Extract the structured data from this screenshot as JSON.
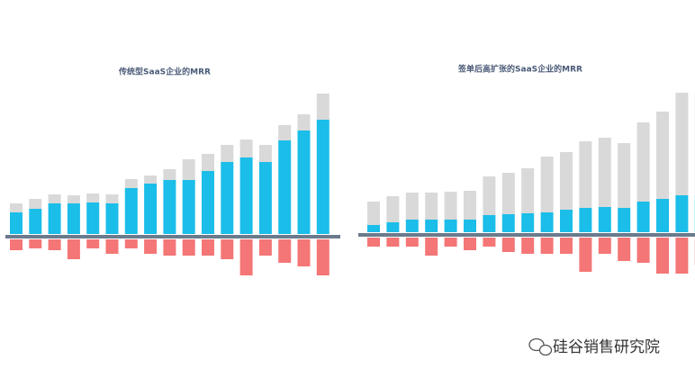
{
  "chart_data": [
    {
      "type": "stacked-diverging-bar",
      "title": "传统型SaaS企业的MRR",
      "series": [
        {
          "color": "#1bbde9",
          "values": [
            24,
            28,
            34,
            34,
            35,
            34,
            51,
            56,
            60,
            60,
            70,
            80,
            85,
            80,
            104,
            115,
            127
          ]
        },
        {
          "color": "#d9d9d9",
          "values": [
            12,
            13,
            12,
            11,
            12,
            12,
            12,
            11,
            14,
            25,
            21,
            21,
            22,
            21,
            19,
            20,
            31
          ]
        },
        {
          "color": "#f47676",
          "values": [
            -12,
            -10,
            -12,
            -22,
            -10,
            -16,
            -10,
            -16,
            -18,
            -18,
            -18,
            -22,
            -40,
            -18,
            -26,
            -30,
            -40
          ]
        }
      ]
    },
    {
      "type": "stacked-diverging-bar",
      "title": "签单后高扩张的SaaS企业的MRR",
      "series": [
        {
          "color": "#1bbde9",
          "values": [
            8,
            11,
            14,
            14,
            14,
            14,
            19,
            20,
            21,
            22,
            25,
            27,
            28,
            27,
            34,
            37,
            41,
            41
          ]
        },
        {
          "color": "#d9d9d9",
          "values": [
            28,
            31,
            32,
            32,
            33,
            34,
            45,
            48,
            52,
            64,
            66,
            76,
            79,
            74,
            90,
            99,
            116,
            116
          ]
        },
        {
          "color": "#f47676",
          "values": [
            -10,
            -10,
            -10,
            -20,
            -10,
            -14,
            -10,
            -16,
            -18,
            -18,
            -18,
            -38,
            -18,
            -26,
            -28,
            -40,
            -40,
            -30
          ]
        }
      ]
    }
  ],
  "watermark": "硅谷销售研究院"
}
